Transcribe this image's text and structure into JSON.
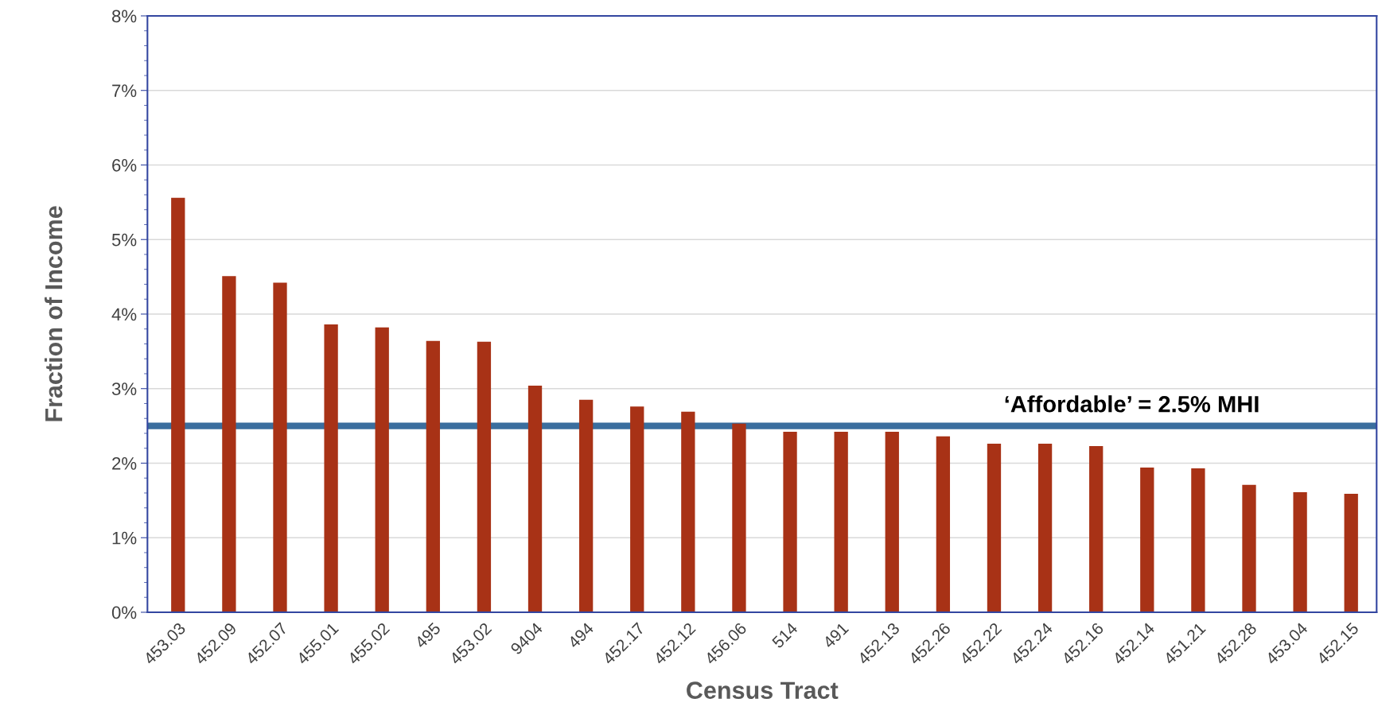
{
  "chart_data": {
    "type": "bar",
    "xlabel": "Census Tract",
    "ylabel": "Fraction of Income",
    "categories": [
      "453.03",
      "452.09",
      "452.07",
      "455.01",
      "455.02",
      "495",
      "453.02",
      "9404",
      "494",
      "452.17",
      "452.12",
      "456.06",
      "514",
      "491",
      "452.13",
      "452.26",
      "452.22",
      "452.24",
      "452.16",
      "452.14",
      "451.21",
      "452.28",
      "453.04",
      "452.15"
    ],
    "values": [
      5.56,
      4.51,
      4.42,
      3.86,
      3.82,
      3.64,
      3.63,
      3.04,
      2.85,
      2.76,
      2.69,
      2.53,
      2.42,
      2.42,
      2.42,
      2.36,
      2.26,
      2.26,
      2.23,
      1.94,
      1.93,
      1.71,
      1.61,
      1.59
    ],
    "color": "#a83216",
    "ylim": [
      0,
      8
    ],
    "yticks": [
      {
        "value": 0,
        "label": "0%"
      },
      {
        "value": 1,
        "label": "1%"
      },
      {
        "value": 2,
        "label": "2%"
      },
      {
        "value": 3,
        "label": "3%"
      },
      {
        "value": 4,
        "label": "4%"
      },
      {
        "value": 5,
        "label": "5%"
      },
      {
        "value": 6,
        "label": "6%"
      },
      {
        "value": 7,
        "label": "7%"
      },
      {
        "value": 8,
        "label": "8%"
      }
    ],
    "grid": "y",
    "ref_lines": [
      {
        "axis": "y",
        "value": 2.5,
        "label": "‘Affordable’ = 2.5% MHI",
        "color": "#3b6e9e"
      }
    ]
  }
}
